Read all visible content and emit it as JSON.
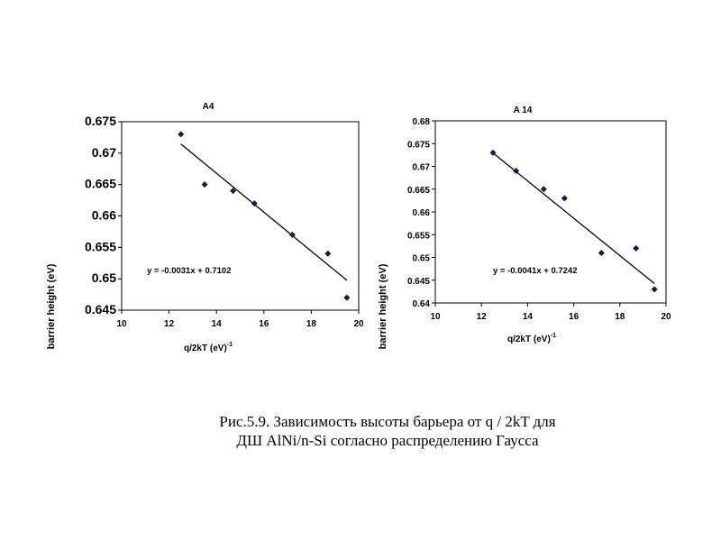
{
  "chart_data": [
    {
      "type": "scatter",
      "title": "A4",
      "xlabel": "q/2kT (eV)",
      "xlabel_sup": "-1",
      "ylabel": "barrier height (eV)",
      "xlim": [
        10,
        20
      ],
      "ylim": [
        0.645,
        0.675
      ],
      "x_ticks": [
        "10",
        "12",
        "14",
        "16",
        "18",
        "20"
      ],
      "y_ticks": [
        "0.645",
        "0.65",
        "0.655",
        "0.66",
        "0.665",
        "0.67",
        "0.675"
      ],
      "grid": false,
      "points": [
        {
          "x": 12.5,
          "y": 0.673
        },
        {
          "x": 13.5,
          "y": 0.665
        },
        {
          "x": 14.7,
          "y": 0.664
        },
        {
          "x": 15.6,
          "y": 0.662
        },
        {
          "x": 17.2,
          "y": 0.657
        },
        {
          "x": 18.7,
          "y": 0.654
        },
        {
          "x": 19.5,
          "y": 0.647
        }
      ],
      "trendline": {
        "slope": -0.0031,
        "intercept": 0.7102,
        "x_range": [
          12.5,
          19.5
        ]
      },
      "equation": "y = -0.0031x + 0.7102",
      "colors": {
        "marker": "#0d1a52",
        "line": "#000000"
      }
    },
    {
      "type": "scatter",
      "title": "A 14",
      "xlabel": "q/2kT (eV)",
      "xlabel_sup": "-1",
      "ylabel": "barrier height (eV)",
      "xlim": [
        10,
        20
      ],
      "ylim": [
        0.64,
        0.68
      ],
      "x_ticks": [
        "10",
        "12",
        "14",
        "16",
        "18",
        "20"
      ],
      "y_ticks": [
        "0.64",
        "0.645",
        "0.65",
        "0.655",
        "0.66",
        "0.665",
        "0.67",
        "0.675",
        "0.68"
      ],
      "grid": false,
      "points": [
        {
          "x": 12.5,
          "y": 0.673
        },
        {
          "x": 13.5,
          "y": 0.669
        },
        {
          "x": 14.7,
          "y": 0.665
        },
        {
          "x": 15.6,
          "y": 0.663
        },
        {
          "x": 17.2,
          "y": 0.651
        },
        {
          "x": 18.7,
          "y": 0.652
        },
        {
          "x": 19.5,
          "y": 0.643
        }
      ],
      "trendline": {
        "slope": -0.0041,
        "intercept": 0.7242,
        "x_range": [
          12.5,
          19.5
        ]
      },
      "equation": "y = -0.0041x + 0.7242",
      "colors": {
        "marker": "#0d1a52",
        "line": "#000000"
      }
    }
  ],
  "caption": {
    "line1": "Рис.5.9. Зависимость высоты барьера от q / 2kT для",
    "line2": "ДШ AlNi/n-Si согласно распределению Гаусса"
  }
}
